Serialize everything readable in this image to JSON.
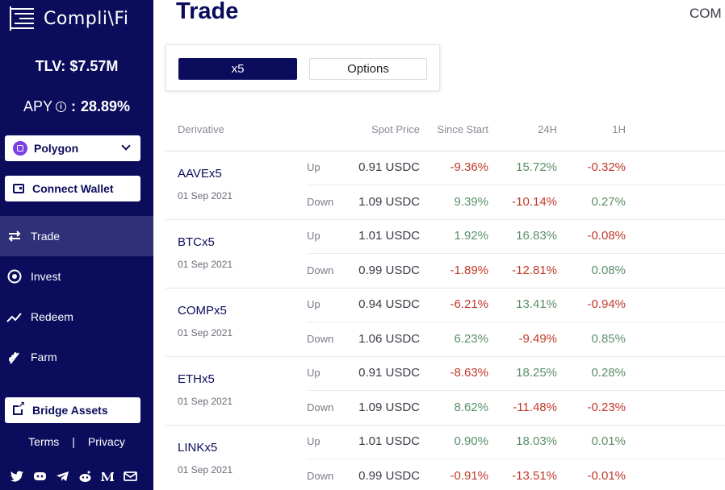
{
  "brand": {
    "name": "Compli\\Fi"
  },
  "sidebar": {
    "tlv_label": "TLV:",
    "tlv_value": "$7.57M",
    "apy_label": "APY",
    "apy_value": "28.89%",
    "network": "Polygon",
    "connect_wallet": "Connect Wallet",
    "nav": [
      {
        "label": "Trade",
        "icon": "swap-icon",
        "active": true
      },
      {
        "label": "Invest",
        "icon": "target-icon",
        "active": false
      },
      {
        "label": "Redeem",
        "icon": "trend-icon",
        "active": false
      },
      {
        "label": "Farm",
        "icon": "wheat-icon",
        "active": false
      }
    ],
    "bridge_assets": "Bridge Assets",
    "terms": "Terms",
    "separator": "|",
    "privacy": "Privacy",
    "socials": [
      "twitter-icon",
      "discord-icon",
      "telegram-icon",
      "reddit-icon",
      "medium-icon",
      "mail-icon"
    ]
  },
  "header": {
    "title": "Trade",
    "right_text": "COM"
  },
  "mode_toggle": {
    "x5": "x5",
    "options": "Options"
  },
  "table": {
    "headers": {
      "derivative": "Derivative",
      "spot": "Spot Price",
      "since": "Since Start",
      "h24": "24H",
      "h1": "1H"
    },
    "groups": [
      {
        "name": "AAVEx5",
        "date": "01 Sep 2021",
        "up": {
          "label": "Up",
          "spot": "0.91 USDC",
          "since": "-9.36%",
          "h24": "15.72%",
          "h1": "-0.32%"
        },
        "down": {
          "label": "Down",
          "spot": "1.09 USDC",
          "since": "9.39%",
          "h24": "-10.14%",
          "h1": "0.27%"
        }
      },
      {
        "name": "BTCx5",
        "date": "01 Sep 2021",
        "up": {
          "label": "Up",
          "spot": "1.01 USDC",
          "since": "1.92%",
          "h24": "16.83%",
          "h1": "-0.08%"
        },
        "down": {
          "label": "Down",
          "spot": "0.99 USDC",
          "since": "-1.89%",
          "h24": "-12.81%",
          "h1": "0.08%"
        }
      },
      {
        "name": "COMPx5",
        "date": "01 Sep 2021",
        "up": {
          "label": "Up",
          "spot": "0.94 USDC",
          "since": "-6.21%",
          "h24": "13.41%",
          "h1": "-0.94%"
        },
        "down": {
          "label": "Down",
          "spot": "1.06 USDC",
          "since": "6.23%",
          "h24": "-9.49%",
          "h1": "0.85%"
        }
      },
      {
        "name": "ETHx5",
        "date": "01 Sep 2021",
        "up": {
          "label": "Up",
          "spot": "0.91 USDC",
          "since": "-8.63%",
          "h24": "18.25%",
          "h1": "0.28%"
        },
        "down": {
          "label": "Down",
          "spot": "1.09 USDC",
          "since": "8.62%",
          "h24": "-11.48%",
          "h1": "-0.23%"
        }
      },
      {
        "name": "LINKx5",
        "date": "01 Sep 2021",
        "up": {
          "label": "Up",
          "spot": "1.01 USDC",
          "since": "0.90%",
          "h24": "18.03%",
          "h1": "0.01%"
        },
        "down": {
          "label": "Down",
          "spot": "0.99 USDC",
          "since": "-0.91%",
          "h24": "-13.51%",
          "h1": "-0.01%"
        }
      }
    ]
  },
  "colors": {
    "navy": "#0b0c5c",
    "negative": "#c0392b",
    "positive": "#5a8f6a"
  }
}
